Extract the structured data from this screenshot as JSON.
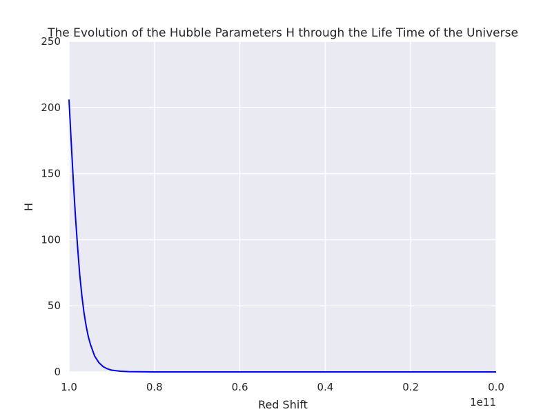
{
  "chart_data": {
    "type": "line",
    "title": "The Evolution of the Hubble Parameters H through the Life Time of the Universe",
    "xlabel": "Red Shift",
    "ylabel": "H",
    "x_offset_text": "1e11",
    "x_scale_factor": 100000000000.0,
    "xlim": [
      1.0,
      0.0
    ],
    "ylim": [
      0,
      250
    ],
    "x_inverted": true,
    "grid": true,
    "legend": "none",
    "xticks": [
      1.0,
      0.8,
      0.6,
      0.4,
      0.2,
      0.0
    ],
    "xtick_labels": [
      "1.0",
      "0.8",
      "0.6",
      "0.4",
      "0.2",
      "0.0"
    ],
    "yticks": [
      0,
      50,
      100,
      150,
      200,
      250
    ],
    "ytick_labels": [
      "0",
      "50",
      "100",
      "150",
      "200",
      "250"
    ],
    "series": [
      {
        "color": "#0000ff",
        "x": [
          1.0,
          0.995,
          0.99,
          0.985,
          0.98,
          0.975,
          0.97,
          0.965,
          0.96,
          0.955,
          0.95,
          0.94,
          0.93,
          0.92,
          0.91,
          0.9,
          0.88,
          0.86,
          0.84,
          0.8,
          0.75,
          0.7,
          0.6,
          0.5,
          0.4,
          0.3,
          0.2,
          0.1,
          0.0
        ],
        "y": [
          206,
          175,
          145,
          118,
          95,
          74,
          58,
          45,
          35,
          27,
          21,
          12,
          7,
          4,
          2.3,
          1.3,
          0.5,
          0.2,
          0.1,
          0.03,
          0.01,
          0.004,
          0.001,
          0.0005,
          0.0002,
          0.0001,
          5e-05,
          2e-05,
          1e-05
        ]
      }
    ]
  },
  "colors": {
    "plot_background": "#eaeaf2",
    "grid": "#ffffff",
    "text": "#262626"
  }
}
